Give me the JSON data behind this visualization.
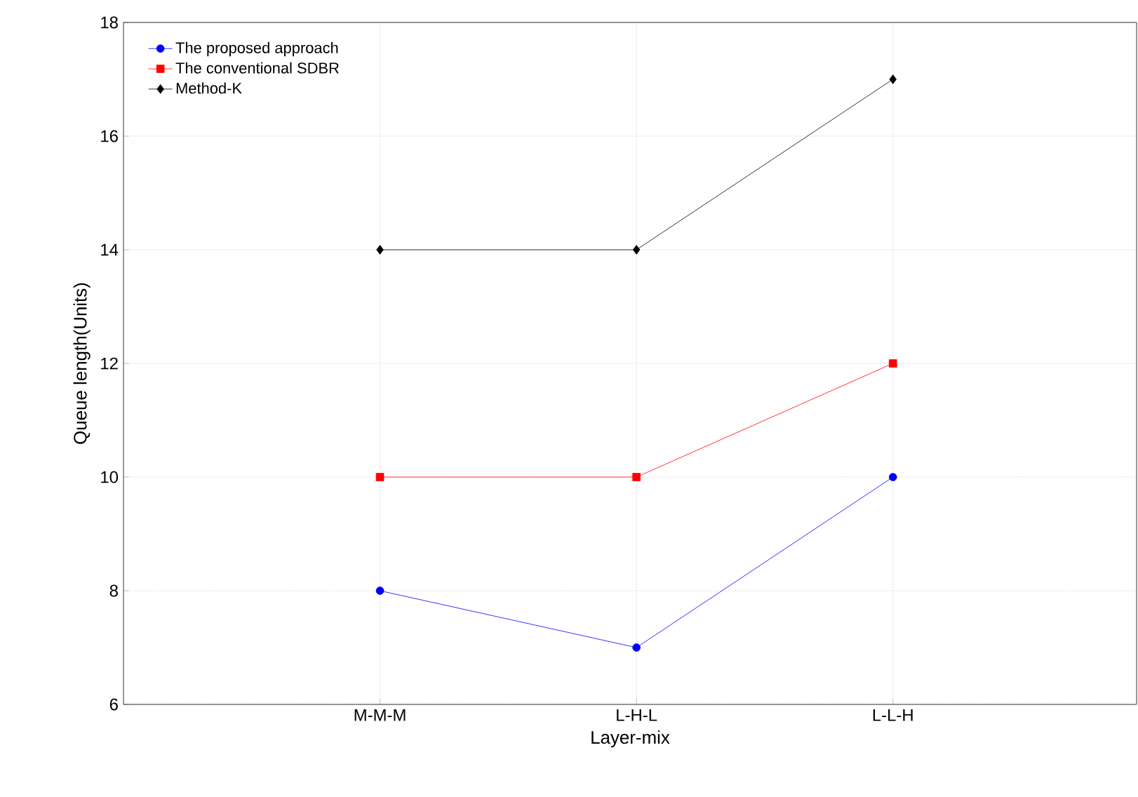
{
  "chart_data": {
    "type": "line",
    "xlabel": "Layer-mix",
    "ylabel": "Queue length(Units)",
    "categories": [
      "M-M-M",
      "L-H-L",
      "L-L-H"
    ],
    "series": [
      {
        "name": "The proposed approach",
        "color": "#0000ff",
        "marker": "circle",
        "values": [
          8,
          7,
          10
        ]
      },
      {
        "name": "The conventional  SDBR",
        "color": "#ff0000",
        "marker": "square",
        "values": [
          10,
          10,
          12
        ]
      },
      {
        "name": "Method-K",
        "color": "#000000",
        "marker": "diamond",
        "values": [
          14,
          14,
          17
        ]
      }
    ],
    "ylim": [
      6,
      18
    ],
    "yticks": [
      6,
      8,
      10,
      12,
      14,
      16,
      18
    ],
    "grid": true,
    "legend": "top left"
  }
}
